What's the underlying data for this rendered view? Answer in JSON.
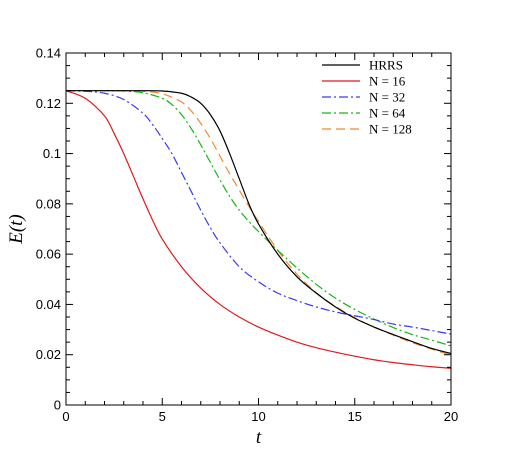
{
  "chart_data": {
    "type": "line",
    "xlabel": "t",
    "ylabel": "E(t)",
    "xlim": [
      0,
      20
    ],
    "ylim": [
      0,
      0.14
    ],
    "xticks": [
      0,
      5,
      10,
      15,
      20
    ],
    "yticks": [
      0,
      0.02,
      0.04,
      0.06,
      0.08,
      0.1,
      0.12,
      0.14
    ],
    "grid": false,
    "legend_position": "top-right",
    "series": [
      {
        "name": "HRRS",
        "color": "#000000",
        "dash": "solid",
        "x": [
          0,
          1,
          2,
          3,
          4,
          5,
          6,
          6.5,
          7,
          7.5,
          8,
          8.5,
          9,
          9.5,
          10,
          11,
          12,
          13,
          14,
          15,
          16,
          17,
          18,
          19,
          20
        ],
        "y": [
          0.125,
          0.125,
          0.125,
          0.125,
          0.125,
          0.1249,
          0.124,
          0.1225,
          0.12,
          0.1155,
          0.109,
          0.1,
          0.09,
          0.08,
          0.072,
          0.06,
          0.051,
          0.0445,
          0.039,
          0.0345,
          0.031,
          0.028,
          0.0252,
          0.0225,
          0.0205
        ]
      },
      {
        "name": "N = 16",
        "color": "#e0191b",
        "dash": "solid",
        "x": [
          0,
          1,
          2,
          2.5,
          3,
          3.5,
          4,
          4.5,
          5,
          6,
          7,
          8,
          9,
          10,
          11,
          12,
          13,
          14,
          15,
          16,
          17,
          18,
          19,
          20
        ],
        "y": [
          0.125,
          0.122,
          0.115,
          0.108,
          0.1,
          0.091,
          0.082,
          0.0735,
          0.066,
          0.055,
          0.0465,
          0.04,
          0.035,
          0.031,
          0.0278,
          0.025,
          0.0228,
          0.021,
          0.0194,
          0.018,
          0.0169,
          0.016,
          0.0152,
          0.0146
        ]
      },
      {
        "name": "N = 32",
        "color": "#3a3af0",
        "dash": "dashdot",
        "x": [
          0,
          1,
          2,
          3,
          4,
          4.5,
          5,
          5.5,
          6,
          6.5,
          7,
          7.5,
          8,
          9,
          10,
          11,
          12,
          13,
          14,
          15,
          16,
          17,
          18,
          19,
          20
        ],
        "y": [
          0.125,
          0.1248,
          0.124,
          0.1215,
          0.116,
          0.1115,
          0.106,
          0.1,
          0.0925,
          0.085,
          0.0775,
          0.0705,
          0.0645,
          0.055,
          0.049,
          0.0445,
          0.0415,
          0.039,
          0.037,
          0.0355,
          0.034,
          0.0322,
          0.031,
          0.0296,
          0.0282
        ]
      },
      {
        "name": "N = 64",
        "color": "#14b814",
        "dash": "dashdot",
        "x": [
          0,
          1,
          2,
          3,
          4,
          5,
          5.5,
          6,
          6.5,
          7,
          7.5,
          8,
          8.5,
          9,
          9.5,
          10,
          11,
          12,
          13,
          14,
          15,
          16,
          17,
          18,
          19,
          20
        ],
        "y": [
          0.125,
          0.125,
          0.125,
          0.1249,
          0.1242,
          0.122,
          0.1195,
          0.1155,
          0.11,
          0.1035,
          0.0965,
          0.0895,
          0.083,
          0.0775,
          0.073,
          0.069,
          0.0615,
          0.0545,
          0.048,
          0.0425,
          0.038,
          0.0342,
          0.0308,
          0.028,
          0.0258,
          0.0235
        ]
      },
      {
        "name": "N = 128",
        "color": "#f08a2c",
        "dash": "dashed",
        "x": [
          0,
          1,
          2,
          3,
          4,
          5,
          6,
          6.5,
          7,
          7.5,
          8,
          8.5,
          9,
          9.5,
          10,
          11,
          12,
          13,
          14,
          15,
          16,
          17,
          18,
          19,
          20
        ],
        "y": [
          0.125,
          0.125,
          0.125,
          0.125,
          0.1248,
          0.1238,
          0.1205,
          0.117,
          0.112,
          0.106,
          0.099,
          0.092,
          0.0855,
          0.079,
          0.073,
          0.0615,
          0.052,
          0.0447,
          0.0392,
          0.0348,
          0.031,
          0.0278,
          0.0248,
          0.0222,
          0.0198
        ]
      }
    ]
  }
}
